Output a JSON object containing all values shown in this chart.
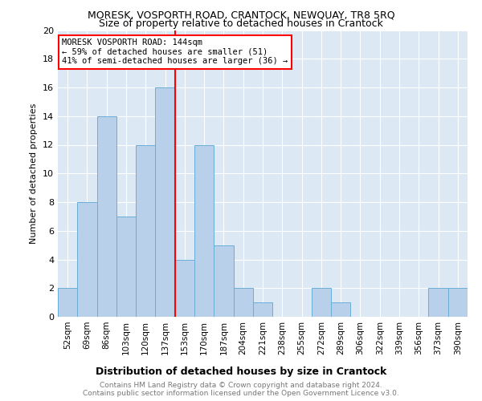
{
  "title": "MORESK, VOSPORTH ROAD, CRANTOCK, NEWQUAY, TR8 5RQ",
  "subtitle": "Size of property relative to detached houses in Crantock",
  "xlabel": "Distribution of detached houses by size in Crantock",
  "ylabel": "Number of detached properties",
  "footer_line1": "Contains HM Land Registry data © Crown copyright and database right 2024.",
  "footer_line2": "Contains public sector information licensed under the Open Government Licence v3.0.",
  "bar_labels": [
    "52sqm",
    "69sqm",
    "86sqm",
    "103sqm",
    "120sqm",
    "137sqm",
    "153sqm",
    "170sqm",
    "187sqm",
    "204sqm",
    "221sqm",
    "238sqm",
    "255sqm",
    "272sqm",
    "289sqm",
    "306sqm",
    "322sqm",
    "339sqm",
    "356sqm",
    "373sqm",
    "390sqm"
  ],
  "bar_values": [
    2,
    8,
    14,
    7,
    12,
    16,
    4,
    12,
    5,
    2,
    1,
    0,
    0,
    2,
    1,
    0,
    0,
    0,
    0,
    2,
    2
  ],
  "bar_color": "#b8d0ea",
  "bar_edge_color": "#6aaed6",
  "bg_color": "#dce9f5",
  "vline_color": "red",
  "vline_x": 5.5,
  "annotation_text": "MORESK VOSPORTH ROAD: 144sqm\n← 59% of detached houses are smaller (51)\n41% of semi-detached houses are larger (36) →",
  "annotation_box_color": "white",
  "annotation_box_edge_color": "red",
  "ylim": [
    0,
    20
  ],
  "yticks": [
    0,
    2,
    4,
    6,
    8,
    10,
    12,
    14,
    16,
    18,
    20
  ],
  "title_fontsize": 9,
  "subtitle_fontsize": 9
}
